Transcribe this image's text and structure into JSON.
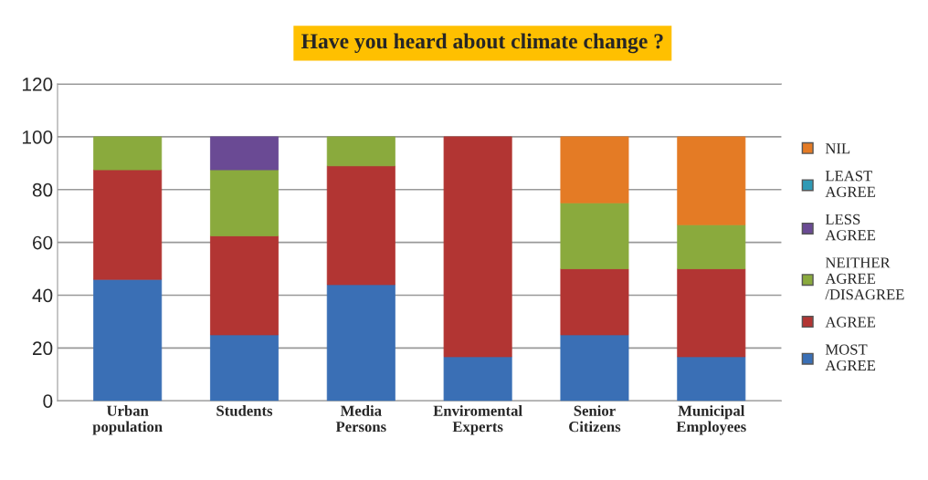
{
  "chart_data": {
    "type": "bar",
    "title": "Have you heard about climate change ?",
    "stacked": true,
    "categories": [
      "Urban\npopulation",
      "Students",
      "Media\nPersons",
      "Enviromental\nExperts",
      "Senior\nCitizens",
      "Municipal\nEmployees"
    ],
    "series": [
      {
        "name": "MOST\nAGREE",
        "color": "#3a6fb5",
        "values": [
          46,
          25,
          44,
          16.7,
          25,
          16.7
        ]
      },
      {
        "name": "AGREE",
        "color": "#b23533",
        "values": [
          41.5,
          37.5,
          45,
          83.3,
          25,
          33.3
        ]
      },
      {
        "name": "NEITHER\nAGREE\n/DISAGREE",
        "color": "#8aaa3d",
        "values": [
          12.5,
          25,
          11,
          0,
          25,
          16.7
        ]
      },
      {
        "name": "LESS\nAGREE",
        "color": "#6a4a94",
        "values": [
          0,
          12.5,
          0,
          0,
          0,
          0
        ]
      },
      {
        "name": "LEAST\nAGREE",
        "color": "#2f9ab5",
        "values": [
          0,
          0,
          0,
          0,
          0,
          0
        ]
      },
      {
        "name": "NIL",
        "color": "#e47b25",
        "values": [
          0,
          0,
          0,
          0,
          25,
          33.3
        ]
      }
    ],
    "ylim": [
      0,
      120
    ],
    "yticks": [
      0,
      20,
      40,
      60,
      80,
      100,
      120
    ],
    "grid": "y",
    "legend": "right"
  }
}
